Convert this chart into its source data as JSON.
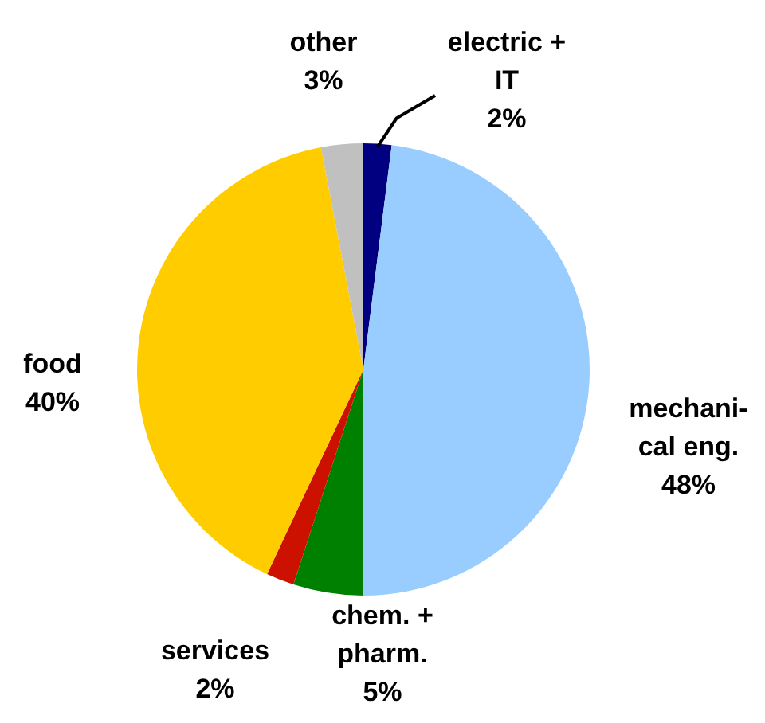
{
  "chart_data": {
    "type": "pie",
    "categories": [
      "electric +\nIT",
      "mechani-\ncal eng.",
      "chem. +\npharm.",
      "services",
      "food",
      "other"
    ],
    "values": [
      2,
      48,
      5,
      2,
      40,
      3
    ],
    "colors": [
      "#000080",
      "#99ccff",
      "#008000",
      "#cc1100",
      "#ffcc00",
      "#c0c0c0"
    ],
    "value_labels": [
      "2%",
      "48%",
      "5%",
      "2%",
      "40%",
      "3%"
    ]
  }
}
